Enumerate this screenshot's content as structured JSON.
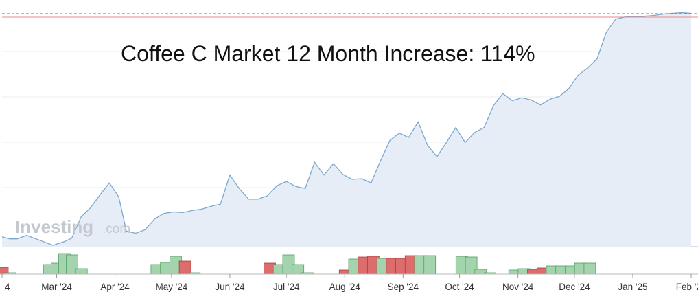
{
  "chart_data": {
    "type": "area",
    "title": "Coffee C Market 12 Month Increase: 114%",
    "watermark": {
      "brand": "Investing",
      "suffix": ".com"
    },
    "x_tick_labels": [
      "4",
      "Mar '24",
      "Apr '24",
      "May '24",
      "Jun '24",
      "Jul '24",
      "Aug '24",
      "Sep '24",
      "Oct '24",
      "Nov '24",
      "Dec '24",
      "Jan '25",
      "Feb '25"
    ],
    "x_tick_dates": [
      "2024-02-01",
      "2024-03-01",
      "2024-04-01",
      "2024-05-01",
      "2024-06-01",
      "2024-07-01",
      "2024-08-01",
      "2024-09-01",
      "2024-10-01",
      "2024-11-01",
      "2024-12-01",
      "2025-01-01",
      "2025-02-01"
    ],
    "price": {
      "x": [
        "2024-02-01",
        "2024-02-05",
        "2024-02-09",
        "2024-02-14",
        "2024-02-19",
        "2024-02-23",
        "2024-02-28",
        "2024-03-05",
        "2024-03-09",
        "2024-03-14",
        "2024-03-19",
        "2024-03-24",
        "2024-03-29",
        "2024-04-03",
        "2024-04-07",
        "2024-04-12",
        "2024-04-17",
        "2024-04-22",
        "2024-04-27",
        "2024-05-02",
        "2024-05-07",
        "2024-05-12",
        "2024-05-17",
        "2024-05-22",
        "2024-05-27",
        "2024-06-01",
        "2024-06-06",
        "2024-06-11",
        "2024-06-16",
        "2024-06-21",
        "2024-06-26",
        "2024-07-01",
        "2024-07-06",
        "2024-07-11",
        "2024-07-16",
        "2024-07-21",
        "2024-07-26",
        "2024-07-31",
        "2024-08-05",
        "2024-08-10",
        "2024-08-15",
        "2024-08-20",
        "2024-08-25",
        "2024-08-30",
        "2024-09-04",
        "2024-09-09",
        "2024-09-14",
        "2024-09-19",
        "2024-09-24",
        "2024-09-29",
        "2024-10-04",
        "2024-10-09",
        "2024-10-14",
        "2024-10-19",
        "2024-10-24",
        "2024-10-29",
        "2024-11-03",
        "2024-11-08",
        "2024-11-13",
        "2024-11-18",
        "2024-11-23",
        "2024-11-28",
        "2024-12-03",
        "2024-12-08",
        "2024-12-13",
        "2024-12-18",
        "2024-12-23",
        "2024-12-28",
        "2025-01-02",
        "2025-01-07",
        "2025-01-12",
        "2025-01-17",
        "2025-01-22",
        "2025-01-27",
        "2025-02-01"
      ],
      "y": [
        12,
        9,
        9,
        14,
        9,
        5,
        0,
        5,
        10,
        40,
        53,
        71,
        88,
        68,
        20,
        17,
        22,
        37,
        45,
        47,
        46,
        49,
        51,
        55,
        58,
        99,
        80,
        65,
        65,
        70,
        84,
        90,
        83,
        80,
        117,
        99,
        115,
        100,
        93,
        94,
        88,
        119,
        148,
        158,
        152,
        174,
        141,
        125,
        145,
        166,
        145,
        159,
        166,
        197,
        214,
        204,
        208,
        205,
        198,
        206,
        210,
        221,
        240,
        250,
        263,
        301,
        319,
        322,
        322,
        323,
        324,
        326,
        327,
        328,
        327
      ]
    },
    "volume": {
      "x": [
        "2024-02-01",
        "2024-02-05",
        "2024-02-26",
        "2024-03-01",
        "2024-03-05",
        "2024-03-09",
        "2024-03-14",
        "2024-04-23",
        "2024-04-28",
        "2024-05-03",
        "2024-05-08",
        "2024-05-13",
        "2024-06-22",
        "2024-06-27",
        "2024-07-02",
        "2024-07-07",
        "2024-07-12",
        "2024-08-01",
        "2024-08-06",
        "2024-08-11",
        "2024-08-16",
        "2024-08-21",
        "2024-08-26",
        "2024-08-31",
        "2024-09-05",
        "2024-09-10",
        "2024-09-15",
        "2024-10-02",
        "2024-10-07",
        "2024-10-12",
        "2024-10-17",
        "2024-10-30",
        "2024-11-04",
        "2024-11-09",
        "2024-11-14",
        "2024-11-19",
        "2024-11-24",
        "2024-11-29",
        "2024-12-04",
        "2024-12-09"
      ],
      "v": [
        10,
        2,
        14,
        16,
        30,
        28,
        8,
        14,
        17,
        26,
        19,
        2,
        16,
        14,
        28,
        14,
        2,
        6,
        22,
        25,
        26,
        23,
        23,
        23,
        27,
        27,
        27,
        26,
        25,
        7,
        2,
        6,
        8,
        7,
        9,
        12,
        12,
        12,
        16,
        16
      ],
      "dir": [
        "down",
        "up",
        "up",
        "up",
        "up",
        "up",
        "up",
        "up",
        "up",
        "up",
        "down",
        "up",
        "down",
        "up",
        "up",
        "up",
        "up",
        "down",
        "up",
        "down",
        "down",
        "up",
        "down",
        "down",
        "down",
        "up",
        "up",
        "up",
        "up",
        "up",
        "up",
        "up",
        "up",
        "down",
        "down",
        "up",
        "up",
        "up",
        "up",
        "up"
      ]
    },
    "colors": {
      "line": "#7aa9d0",
      "area": "#e6edf6",
      "up_fill": "#a4d4ad",
      "up_stroke": "#52a063",
      "down_fill": "#dd6c6c",
      "down_stroke": "#b33d3d",
      "reference_dashed": "#757575",
      "reference_solid": "#e88a8a",
      "grid": "#eeeeee"
    },
    "grid": true,
    "legend": "none"
  }
}
